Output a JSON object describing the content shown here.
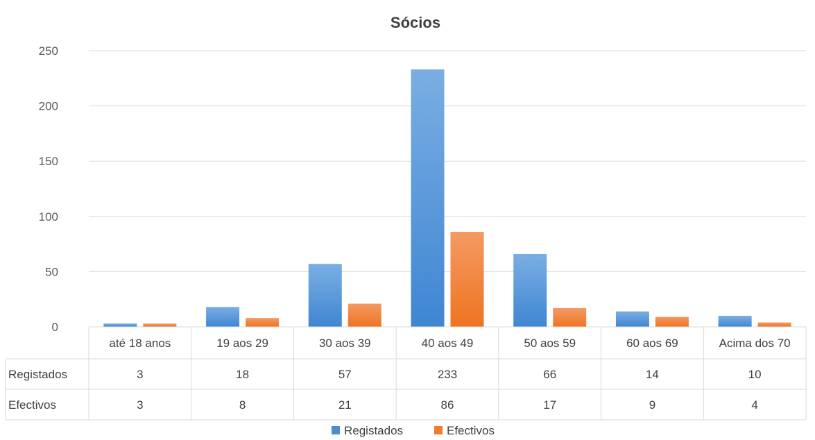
{
  "chart_data": {
    "type": "bar",
    "title": "Sócios",
    "xlabel": "",
    "ylabel": "",
    "ylim": [
      0,
      250
    ],
    "yticks": [
      0,
      50,
      100,
      150,
      200,
      250
    ],
    "grid": true,
    "legend_position": "bottom",
    "categories": [
      "até 18 anos",
      "19 aos 29",
      "30 aos 39",
      "40 aos 49",
      "50 aos 59",
      "60 aos 69",
      "Acima dos 70"
    ],
    "series": [
      {
        "name": "Registados",
        "color": "#4a8fd6",
        "values": [
          3,
          18,
          57,
          233,
          66,
          14,
          10
        ]
      },
      {
        "name": "Efectivos",
        "color": "#f07b2a",
        "values": [
          3,
          8,
          21,
          86,
          17,
          9,
          4
        ]
      }
    ],
    "data_table": true
  }
}
